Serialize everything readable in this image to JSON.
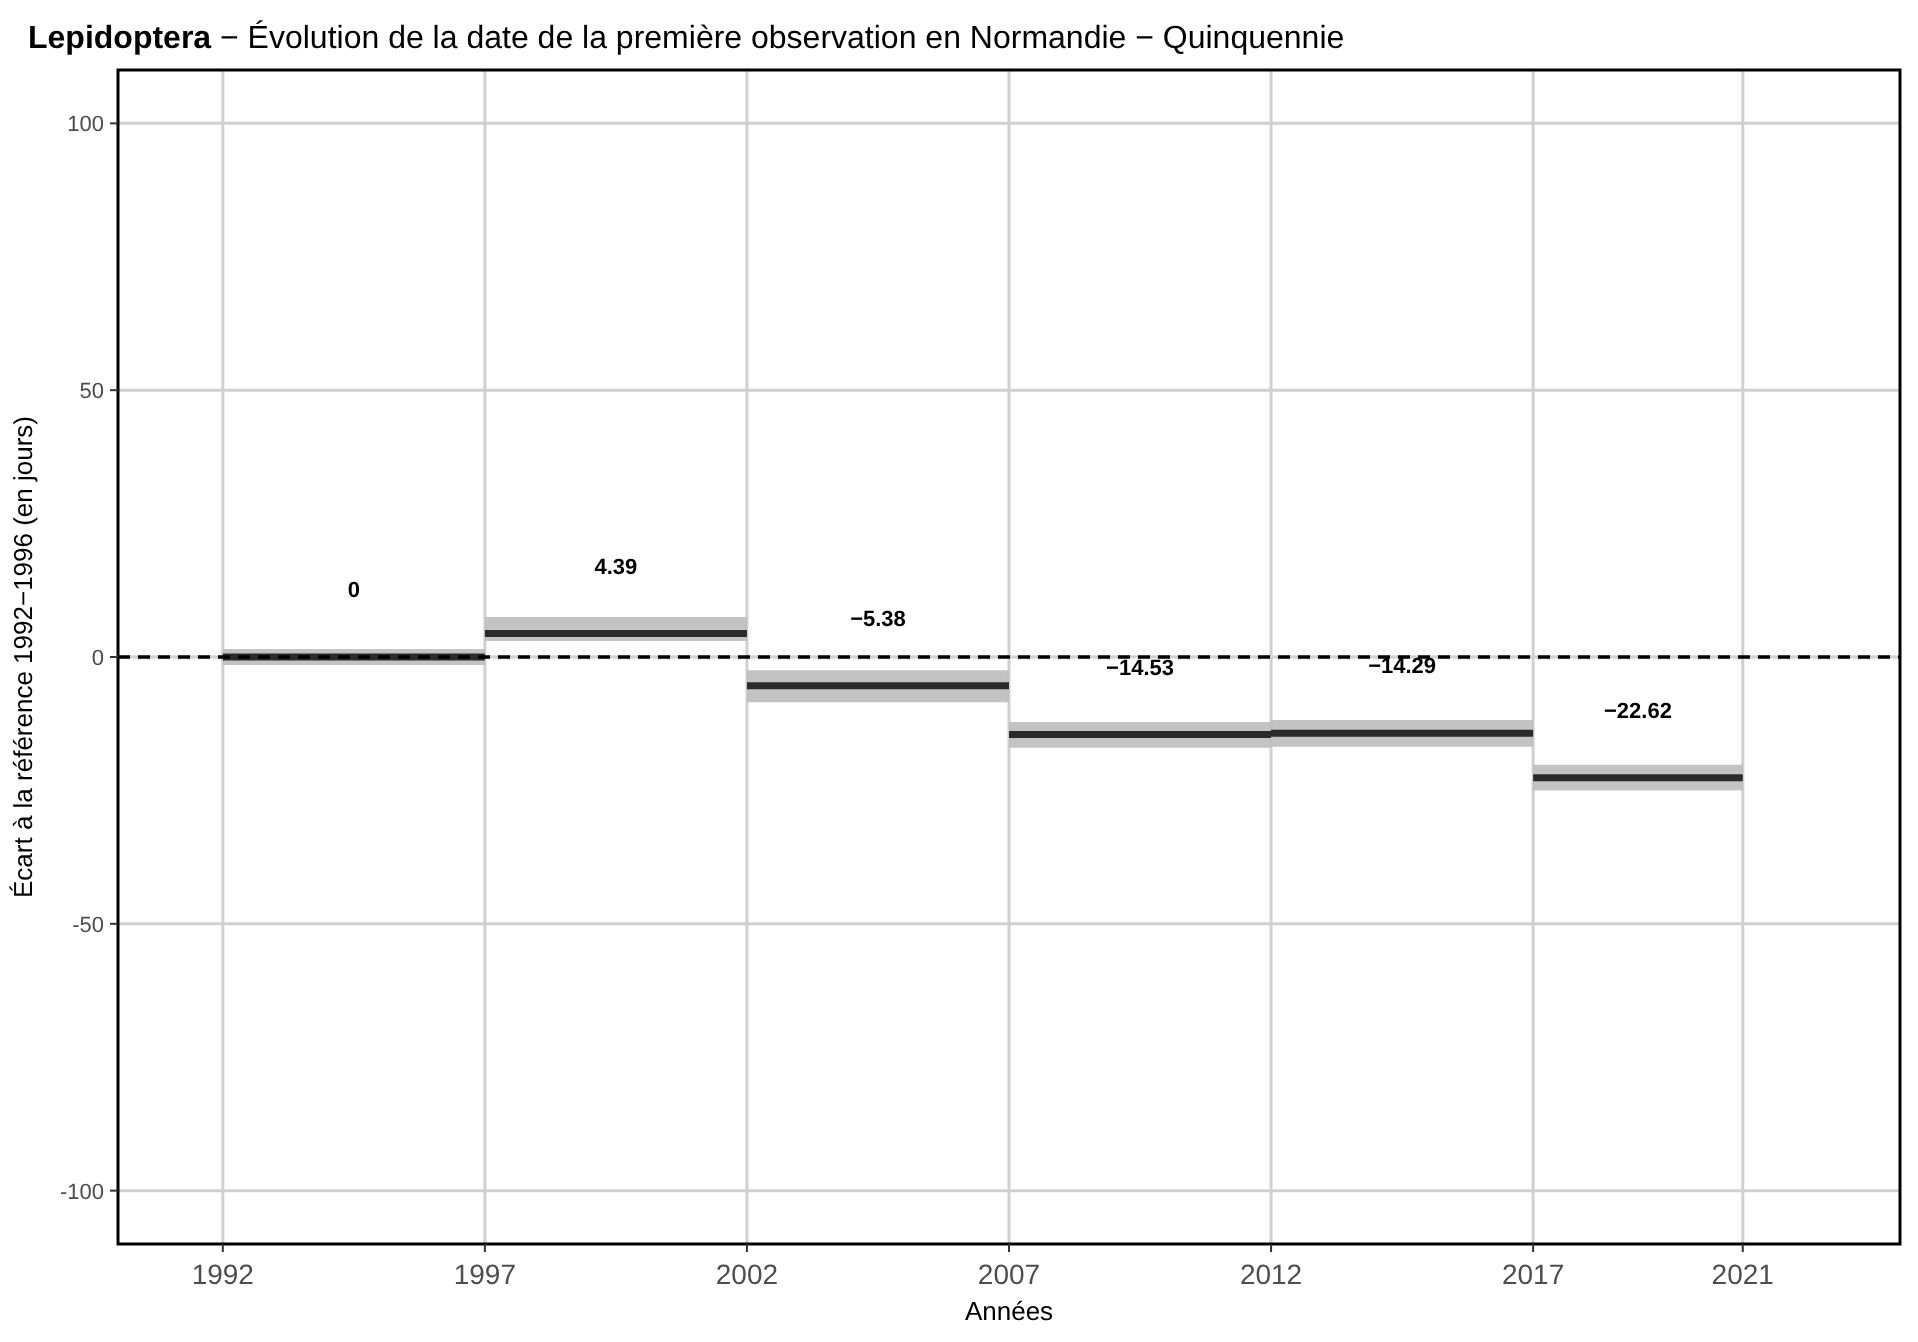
{
  "chart_data": {
    "type": "line",
    "title": "Lepidoptera − Évolution de la date de la première observation en Normandie − Quinquennie",
    "xlabel": "Années",
    "ylabel": "Écart à la référence 1992−1996 (en jours)",
    "series": [
      {
        "color": "#2b2b2b",
        "x": [
          1992,
          1994.5,
          1997,
          null,
          1997,
          1999.5,
          2002,
          null,
          2002,
          2004.5,
          2007,
          null,
          2007,
          2009.5,
          2012,
          null,
          2012,
          2014.5,
          2017,
          null,
          2017,
          2019,
          2021
        ],
        "values": [
          0,
          0,
          0,
          null,
          4.39,
          4.39,
          4.39,
          null,
          -5.38,
          -5.38,
          -5.38,
          null,
          -14.53,
          -14.53,
          -14.53,
          null,
          -14.29,
          -14.29,
          -14.29,
          null,
          -22.62,
          -22.62,
          -22.62
        ],
        "lower": [
          -1.5,
          -1.5,
          -1.5,
          null,
          3,
          3,
          3,
          null,
          -8.5,
          -8.5,
          -8.5,
          null,
          -17,
          -17,
          -17,
          null,
          -16.8,
          -16.8,
          -16.8,
          null,
          -25,
          -25,
          -25
        ],
        "upper": [
          1.5,
          1.5,
          1.5,
          null,
          7.5,
          7.5,
          7.5,
          null,
          -2.5,
          -2.5,
          -2.5,
          null,
          -12.2,
          -12.2,
          -12.2,
          null,
          -11.8,
          -11.8,
          -11.8,
          null,
          -20.2,
          -20.2,
          -20.2
        ],
        "value_labels": [
          null,
          "0",
          null,
          null,
          null,
          "4.39",
          null,
          null,
          null,
          "−5.38",
          null,
          null,
          null,
          "−14.53",
          null,
          null,
          null,
          "−14.29",
          null,
          null,
          null,
          "−22.62",
          null
        ]
      }
    ],
    "xlim": [
      1990,
      2024
    ],
    "xticks": [
      1992,
      1997,
      2002,
      2007,
      2012,
      2017,
      2021
    ],
    "ylim": [
      -110,
      110
    ],
    "yticks": [
      -100,
      -50,
      0,
      50,
      100
    ],
    "grid": true,
    "marker": "none",
    "line_style": "solid",
    "ref_lines": [
      {
        "axis": "y",
        "value": 0,
        "color": "#000000",
        "line_style": "dashed"
      }
    ]
  }
}
